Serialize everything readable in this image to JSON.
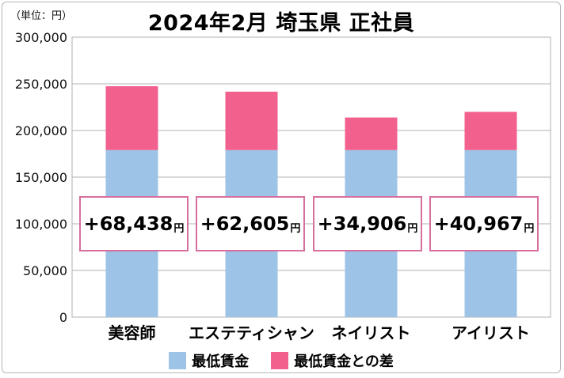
{
  "unit_label": "（単位：円）",
  "chart_data": {
    "type": "bar",
    "stacked": true,
    "title": "2024年2月 埼玉県 正社員",
    "categories": [
      "美容師",
      "エステティシャン",
      "ネイリスト",
      "アイリスト"
    ],
    "series": [
      {
        "name": "最低賃金",
        "color": "#9dc3e6",
        "values": [
          179000,
          179000,
          179000,
          179000
        ]
      },
      {
        "name": "最低賃金との差",
        "color": "#f2608e",
        "values": [
          68438,
          62605,
          34906,
          40967
        ]
      }
    ],
    "ylim": [
      0,
      300000
    ],
    "yticks": [
      {
        "value": 0,
        "label": "0"
      },
      {
        "value": 50000,
        "label": "50,000"
      },
      {
        "value": 100000,
        "label": "100,000"
      },
      {
        "value": 150000,
        "label": "150,000"
      },
      {
        "value": 200000,
        "label": "200,000"
      },
      {
        "value": 250000,
        "label": "250,000"
      },
      {
        "value": 300000,
        "label": "300,000"
      }
    ],
    "grid": true,
    "legend_position": "bottom",
    "annotations": [
      {
        "value": "+68,438",
        "unit": "円"
      },
      {
        "value": "+62,605",
        "unit": "円"
      },
      {
        "value": "+34,906",
        "unit": "円"
      },
      {
        "value": "+40,967",
        "unit": "円"
      }
    ]
  }
}
